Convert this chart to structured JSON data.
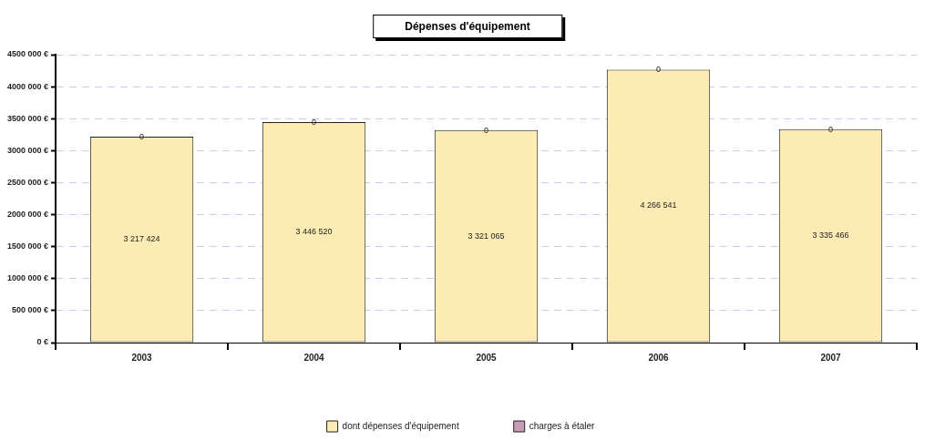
{
  "chart_data": {
    "type": "bar",
    "title": "Dépenses d'équipement",
    "stacked": true,
    "categories": [
      "2003",
      "2004",
      "2005",
      "2006",
      "2007"
    ],
    "series": [
      {
        "name": "dont dépenses d'équipement",
        "color": "#fcebb3",
        "values": [
          3217424,
          3446520,
          3321065,
          4266541,
          3335466
        ],
        "value_labels": [
          "3 217 424",
          "3 446 520",
          "3 321 065",
          "4 266 541",
          "3 335 466"
        ]
      },
      {
        "name": "charges à étaler",
        "color": "#c89cb4",
        "values": [
          0,
          0,
          0,
          0,
          0
        ],
        "value_labels": [
          "0",
          "0",
          "0",
          "0",
          "0"
        ]
      }
    ],
    "ylim": [
      0,
      4500000
    ],
    "yticks": [
      {
        "value": 0,
        "label": "0 €"
      },
      {
        "value": 500000,
        "label": "500 000 €"
      },
      {
        "value": 1000000,
        "label": "1000 000 €"
      },
      {
        "value": 1500000,
        "label": "1500 000 €"
      },
      {
        "value": 2000000,
        "label": "2000 000 €"
      },
      {
        "value": 2500000,
        "label": "2500 000 €"
      },
      {
        "value": 3000000,
        "label": "3000 000 €"
      },
      {
        "value": 3500000,
        "label": "3500 000 €"
      },
      {
        "value": 4000000,
        "label": "4000 000 €"
      },
      {
        "value": 4500000,
        "label": "4500 000 €"
      }
    ],
    "grid": "y",
    "legend": "bottom"
  }
}
